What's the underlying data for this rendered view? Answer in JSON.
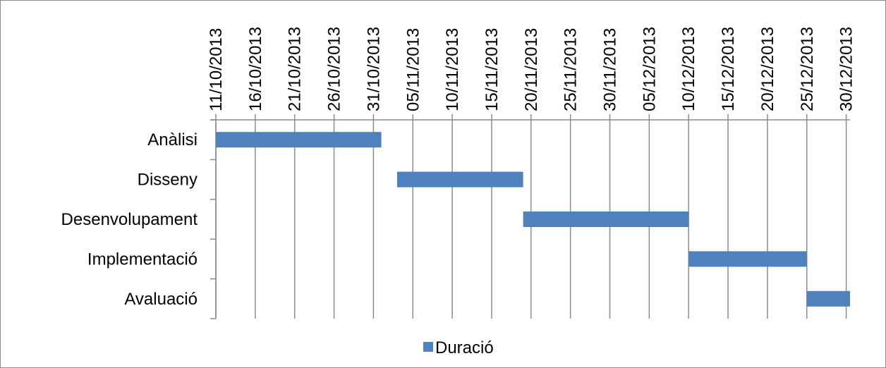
{
  "chart_data": {
    "type": "bar",
    "orientation": "horizontal",
    "subtype": "gantt",
    "title": "",
    "xlabel": "",
    "ylabel": "",
    "categories": [
      "Anàlisi",
      "Disseny",
      "Desenvolupament",
      "Implementació",
      "Avaluació"
    ],
    "series": [
      {
        "name": "Duració",
        "color": "#4f81bd",
        "start": [
          "2013-10-11",
          "2013-11-03",
          "2013-11-19",
          "2013-12-10",
          "2013-12-25"
        ],
        "end": [
          "2013-11-01",
          "2013-11-19",
          "2013-12-10",
          "2013-12-25",
          "2014-01-01"
        ],
        "duration_days": [
          21,
          16,
          21,
          15,
          7
        ]
      }
    ],
    "xaxis": {
      "position": "top",
      "min": "2013-10-11",
      "max": "2014-01-01",
      "tick_step_days": 5,
      "tick_labels": [
        "11/10/2013",
        "16/10/2013",
        "21/10/2013",
        "26/10/2013",
        "31/10/2013",
        "05/11/2013",
        "10/11/2013",
        "15/11/2013",
        "20/11/2013",
        "25/11/2013",
        "30/11/2013",
        "05/12/2013",
        "10/12/2013",
        "15/12/2013",
        "20/12/2013",
        "25/12/2013",
        "30/12/2013"
      ]
    },
    "grid": {
      "vertical": true,
      "horizontal": false
    },
    "legend": {
      "position": "bottom",
      "entries": [
        "Duració"
      ]
    }
  }
}
